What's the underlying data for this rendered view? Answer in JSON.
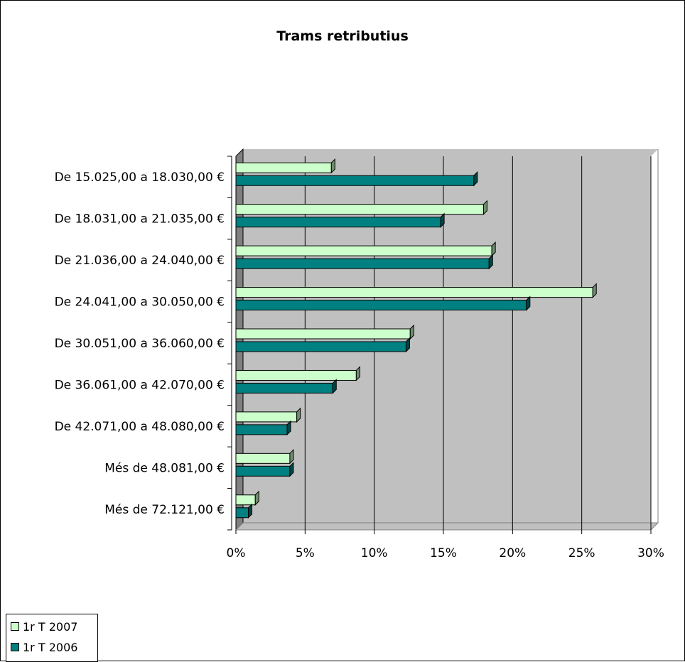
{
  "chart_data": {
    "type": "bar",
    "orientation": "horizontal",
    "title": "Trams retributius",
    "xlabel": "",
    "ylabel": "",
    "xlim": [
      0,
      30
    ],
    "x_ticks": [
      "0%",
      "5%",
      "10%",
      "15%",
      "20%",
      "25%",
      "30%"
    ],
    "x_tick_values": [
      0,
      5,
      10,
      15,
      20,
      25,
      30
    ],
    "categories": [
      "De 15.025,00 a 18.030,00 €",
      "De 18.031,00 a 21.035,00 €",
      "De 21.036,00 a 24.040,00 €",
      "De 24.041,00 a 30.050,00 €",
      "De 30.051,00 a 36.060,00 €",
      "De 36.061,00 a 42.070,00 €",
      "De 42.071,00 a 48.080,00 €",
      "Més de 48.081,00 €",
      "Més de 72.121,00 €"
    ],
    "series": [
      {
        "name": "1r T 2007",
        "color": "#ccffcc",
        "values": [
          6.9,
          17.9,
          18.5,
          25.8,
          12.6,
          8.7,
          4.4,
          3.9,
          1.4
        ]
      },
      {
        "name": "1r T 2006",
        "color": "#008080",
        "values": [
          17.2,
          14.8,
          18.3,
          21.0,
          12.3,
          7.0,
          3.7,
          3.9,
          0.9
        ]
      }
    ],
    "grid": true,
    "legend_position": "bottom-left"
  }
}
